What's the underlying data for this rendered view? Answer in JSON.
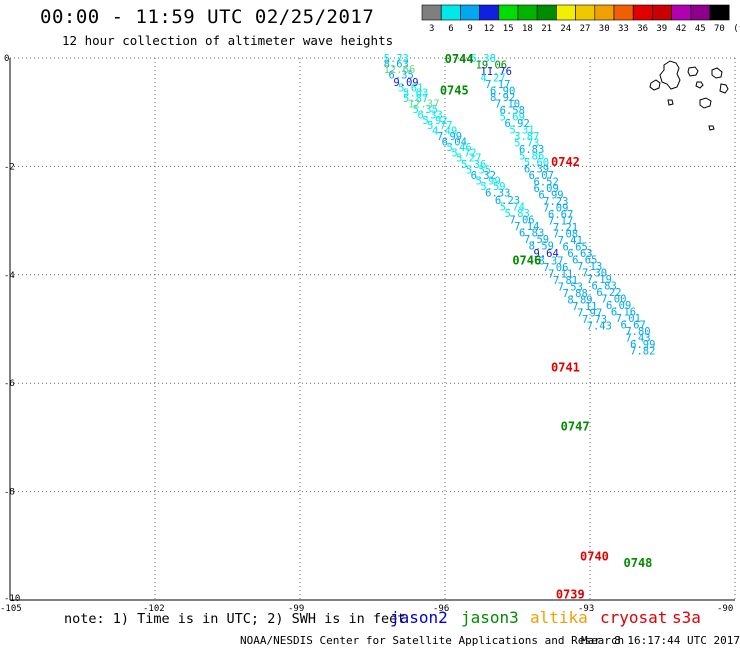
{
  "title": "00:00 - 11:59 UTC 02/25/2017",
  "subtitle": "12 hour collection of altimeter wave heights",
  "colorbar": {
    "labels": [
      "3",
      "6",
      "9",
      "12",
      "15",
      "18",
      "21",
      "24",
      "27",
      "30",
      "33",
      "36",
      "39",
      "42",
      "45",
      "70",
      "(ft)"
    ],
    "colors": [
      "#7f7f7f",
      "#00e8e8",
      "#00a8f0",
      "#1020e0",
      "#00dd00",
      "#00b400",
      "#008c00",
      "#f0f000",
      "#f0c800",
      "#f0a000",
      "#f06000",
      "#e00000",
      "#c80000",
      "#b000b0",
      "#8c008c",
      "#000000"
    ]
  },
  "note": "note: 1) Time is in UTC; 2) SWH is in feet",
  "satellites": [
    {
      "name": "jason2",
      "color": "#0000dd"
    },
    {
      "name": "jason3",
      "color": "#008c00"
    },
    {
      "name": "altika",
      "color": "#f0a000"
    },
    {
      "name": "cryosat",
      "color": "#e00000"
    },
    {
      "name": "s3a",
      "color": "#e00000"
    }
  ],
  "credit": "NOAA/NESDIS Center for Satellite Applications and Research",
  "timestamp": "Mar  8 16:17:44 UTC 2017",
  "chart_data": {
    "type": "scatter",
    "title": "00:00 - 11:59 UTC 02/25/2017",
    "subtitle": "12 hour collection of altimeter wave heights",
    "xlim": [
      -105,
      -90
    ],
    "ylim": [
      -10,
      0
    ],
    "x_ticks": [
      "-105",
      "-102",
      "-99",
      "-96",
      "-93",
      "-90"
    ],
    "y_ticks": [
      "0",
      "-2",
      "-4",
      "-6",
      "-8",
      "-10"
    ],
    "grid": true,
    "legend": "bottom",
    "time_labels": [
      {
        "text": "0744",
        "lon": -95.8,
        "lat": -0.02,
        "color": "#008c00"
      },
      {
        "text": "0745",
        "lon": -95.9,
        "lat": -0.6,
        "color": "#008c00"
      },
      {
        "text": "0742",
        "lon": -93.6,
        "lat": -1.92,
        "color": "#e00000"
      },
      {
        "text": "0746",
        "lon": -94.4,
        "lat": -3.74,
        "color": "#008c00"
      },
      {
        "text": "0741",
        "lon": -93.6,
        "lat": -5.71,
        "color": "#e00000"
      },
      {
        "text": "0747",
        "lon": -93.4,
        "lat": -6.8,
        "color": "#008c00"
      },
      {
        "text": "0740",
        "lon": -93.0,
        "lat": -9.2,
        "color": "#e00000"
      },
      {
        "text": "0748",
        "lon": -92.1,
        "lat": -9.32,
        "color": "#008c00"
      },
      {
        "text": "0739",
        "lon": -93.5,
        "lat": -9.9,
        "color": "#e00000"
      }
    ],
    "series": [
      {
        "values": [
          {
            "lon": -97.0,
            "lat": 0.0,
            "swh": "5.73",
            "color": "#00e8e8"
          },
          {
            "lon": -97.0,
            "lat": -0.1,
            "swh": "8.63",
            "color": "#00a8f0"
          },
          {
            "lon": -97.0,
            "lat": -0.2,
            "swh": "12.66",
            "color": "#6cdc6c"
          },
          {
            "lon": -96.9,
            "lat": -0.3,
            "swh": "6.35",
            "color": "#00a8f0"
          },
          {
            "lon": -96.8,
            "lat": -0.44,
            "swh": "9.09",
            "color": "#1020e0"
          },
          {
            "lon": -96.7,
            "lat": -0.54,
            "swh": "5.61",
            "color": "#00e8e8"
          },
          {
            "lon": -96.6,
            "lat": -0.64,
            "swh": "5.63",
            "color": "#00e8e8"
          },
          {
            "lon": -96.6,
            "lat": -0.74,
            "swh": "5.87",
            "color": "#00e8e8"
          },
          {
            "lon": -96.5,
            "lat": -0.84,
            "swh": "12.37",
            "color": "#6cdc6c"
          },
          {
            "lon": -96.4,
            "lat": -0.94,
            "swh": "5.35",
            "color": "#00e8e8"
          },
          {
            "lon": -96.3,
            "lat": -1.04,
            "swh": "6.33",
            "color": "#00e8e8"
          },
          {
            "lon": -96.2,
            "lat": -1.14,
            "swh": "5.92",
            "color": "#00e8e8"
          },
          {
            "lon": -96.1,
            "lat": -1.24,
            "swh": "5.77",
            "color": "#00e8e8"
          },
          {
            "lon": -96.0,
            "lat": -1.34,
            "swh": "4.49",
            "color": "#00e8e8"
          },
          {
            "lon": -95.9,
            "lat": -1.44,
            "swh": "7.99",
            "color": "#00a8f0"
          },
          {
            "lon": -95.8,
            "lat": -1.54,
            "swh": "6.04",
            "color": "#00a8f0"
          },
          {
            "lon": -95.7,
            "lat": -1.64,
            "swh": "5.46",
            "color": "#00e8e8"
          },
          {
            "lon": -95.6,
            "lat": -1.74,
            "swh": "5.72",
            "color": "#00e8e8"
          },
          {
            "lon": -95.5,
            "lat": -1.84,
            "swh": "5.27",
            "color": "#00e8e8"
          },
          {
            "lon": -95.4,
            "lat": -1.96,
            "swh": "5.36",
            "color": "#00e8e8"
          },
          {
            "lon": -95.3,
            "lat": -2.06,
            "swh": "5.55",
            "color": "#00e8e8"
          },
          {
            "lon": -95.2,
            "lat": -2.16,
            "swh": "6.32",
            "color": "#00a8f0"
          },
          {
            "lon": -95.1,
            "lat": -2.26,
            "swh": "5.99",
            "color": "#00e8e8"
          },
          {
            "lon": -95.0,
            "lat": -2.36,
            "swh": "5.59",
            "color": "#00e8e8"
          },
          {
            "lon": -94.9,
            "lat": -2.48,
            "swh": "6.33",
            "color": "#00a8f0"
          },
          {
            "lon": -94.7,
            "lat": -2.62,
            "swh": "6.23",
            "color": "#00a8f0"
          },
          {
            "lon": -94.6,
            "lat": -2.74,
            "swh": "5.74",
            "color": "#00e8e8"
          },
          {
            "lon": -94.5,
            "lat": -2.86,
            "swh": "5.83",
            "color": "#00e8e8"
          },
          {
            "lon": -94.4,
            "lat": -2.98,
            "swh": "7.06",
            "color": "#00a8f0"
          },
          {
            "lon": -94.3,
            "lat": -3.1,
            "swh": "7.14",
            "color": "#00a8f0"
          },
          {
            "lon": -94.2,
            "lat": -3.22,
            "swh": "6.83",
            "color": "#00a8f0"
          },
          {
            "lon": -94.1,
            "lat": -3.34,
            "swh": "7.59",
            "color": "#00a8f0"
          },
          {
            "lon": -94.0,
            "lat": -3.46,
            "swh": "8.59",
            "color": "#00a8f0"
          },
          {
            "lon": -93.9,
            "lat": -3.6,
            "swh": "9.64",
            "color": "#1020e0"
          },
          {
            "lon": -93.8,
            "lat": -3.74,
            "swh": "8.37",
            "color": "#00a8f0"
          },
          {
            "lon": -93.7,
            "lat": -3.86,
            "swh": "7.06",
            "color": "#00a8f0"
          },
          {
            "lon": -93.6,
            "lat": -3.98,
            "swh": "7.11",
            "color": "#00a8f0"
          },
          {
            "lon": -93.5,
            "lat": -4.1,
            "swh": "7.81",
            "color": "#00a8f0"
          },
          {
            "lon": -93.4,
            "lat": -4.22,
            "swh": "7.53",
            "color": "#00a8f0"
          },
          {
            "lon": -93.3,
            "lat": -4.34,
            "swh": "7.88",
            "color": "#00a8f0"
          },
          {
            "lon": -93.2,
            "lat": -4.46,
            "swh": "8.89",
            "color": "#00a8f0"
          },
          {
            "lon": -93.1,
            "lat": -4.58,
            "swh": "7.11",
            "color": "#00a8f0"
          },
          {
            "lon": -93.0,
            "lat": -4.7,
            "swh": "7.97",
            "color": "#00a8f0"
          },
          {
            "lon": -92.9,
            "lat": -4.82,
            "swh": "7.73",
            "color": "#00a8f0"
          },
          {
            "lon": -92.8,
            "lat": -4.94,
            "swh": "7.43",
            "color": "#00a8f0"
          }
        ]
      },
      {
        "values": [
          {
            "lon": -95.2,
            "lat": 0.0,
            "swh": "5.38",
            "color": "#00e8e8"
          },
          {
            "lon": -95.1,
            "lat": -0.12,
            "swh": "19.06",
            "color": "#008c00"
          },
          {
            "lon": -95.0,
            "lat": -0.24,
            "swh": "11.76",
            "color": "#1020e0"
          },
          {
            "lon": -95.0,
            "lat": -0.36,
            "swh": "4.27",
            "color": "#00e8e8"
          },
          {
            "lon": -94.9,
            "lat": -0.48,
            "swh": "7.17",
            "color": "#00a8f0"
          },
          {
            "lon": -94.8,
            "lat": -0.6,
            "swh": "6.90",
            "color": "#00a8f0"
          },
          {
            "lon": -94.8,
            "lat": -0.72,
            "swh": "8.92",
            "color": "#00a8f0"
          },
          {
            "lon": -94.7,
            "lat": -0.84,
            "swh": "7.10",
            "color": "#00a8f0"
          },
          {
            "lon": -94.6,
            "lat": -0.96,
            "swh": "6.58",
            "color": "#00a8f0"
          },
          {
            "lon": -94.6,
            "lat": -1.08,
            "swh": "5.69",
            "color": "#00e8e8"
          },
          {
            "lon": -94.5,
            "lat": -1.2,
            "swh": "6.92",
            "color": "#00a8f0"
          },
          {
            "lon": -94.4,
            "lat": -1.32,
            "swh": "5.31",
            "color": "#00e8e8"
          },
          {
            "lon": -94.3,
            "lat": -1.44,
            "swh": "3.87",
            "color": "#00e8e8"
          },
          {
            "lon": -94.3,
            "lat": -1.56,
            "swh": "5.73",
            "color": "#00e8e8"
          },
          {
            "lon": -94.2,
            "lat": -1.68,
            "swh": "6.83",
            "color": "#00a8f0"
          },
          {
            "lon": -94.2,
            "lat": -1.8,
            "swh": "5.86",
            "color": "#00e8e8"
          },
          {
            "lon": -94.1,
            "lat": -1.92,
            "swh": "5.60",
            "color": "#00e8e8"
          },
          {
            "lon": -94.1,
            "lat": -2.04,
            "swh": "6.39",
            "color": "#00a8f0"
          },
          {
            "lon": -94.0,
            "lat": -2.16,
            "swh": "6.07",
            "color": "#00a8f0"
          },
          {
            "lon": -93.9,
            "lat": -2.28,
            "swh": "6.52",
            "color": "#00a8f0"
          },
          {
            "lon": -93.9,
            "lat": -2.4,
            "swh": "6.09",
            "color": "#00a8f0"
          },
          {
            "lon": -93.8,
            "lat": -2.52,
            "swh": "6.99",
            "color": "#00a8f0"
          },
          {
            "lon": -93.7,
            "lat": -2.64,
            "swh": "7.23",
            "color": "#00a8f0"
          },
          {
            "lon": -93.7,
            "lat": -2.76,
            "swh": "7.09",
            "color": "#00a8f0"
          },
          {
            "lon": -93.6,
            "lat": -2.88,
            "swh": "6.67",
            "color": "#00a8f0"
          },
          {
            "lon": -93.6,
            "lat": -3.0,
            "swh": "7.17",
            "color": "#00a8f0"
          },
          {
            "lon": -93.5,
            "lat": -3.12,
            "swh": "7.21",
            "color": "#00a8f0"
          },
          {
            "lon": -93.5,
            "lat": -3.24,
            "swh": "7.08",
            "color": "#00a8f0"
          },
          {
            "lon": -93.4,
            "lat": -3.36,
            "swh": "7.41",
            "color": "#00a8f0"
          },
          {
            "lon": -93.3,
            "lat": -3.48,
            "swh": "6.65",
            "color": "#00a8f0"
          },
          {
            "lon": -93.2,
            "lat": -3.6,
            "swh": "6.63",
            "color": "#00a8f0"
          },
          {
            "lon": -93.1,
            "lat": -3.72,
            "swh": "6.65",
            "color": "#00a8f0"
          },
          {
            "lon": -93.0,
            "lat": -3.84,
            "swh": "7.13",
            "color": "#00a8f0"
          },
          {
            "lon": -92.9,
            "lat": -3.96,
            "swh": "7.30",
            "color": "#00a8f0"
          },
          {
            "lon": -92.8,
            "lat": -4.08,
            "swh": "7.19",
            "color": "#00a8f0"
          },
          {
            "lon": -92.7,
            "lat": -4.2,
            "swh": "6.83",
            "color": "#00a8f0"
          },
          {
            "lon": -92.6,
            "lat": -4.32,
            "swh": "6.22",
            "color": "#00a8f0"
          },
          {
            "lon": -92.5,
            "lat": -4.44,
            "swh": "7.00",
            "color": "#00a8f0"
          },
          {
            "lon": -92.4,
            "lat": -4.56,
            "swh": "6.09",
            "color": "#00a8f0"
          },
          {
            "lon": -92.3,
            "lat": -4.68,
            "swh": "6.16",
            "color": "#00a8f0"
          },
          {
            "lon": -92.2,
            "lat": -4.8,
            "swh": "7.01",
            "color": "#00a8f0"
          },
          {
            "lon": -92.1,
            "lat": -4.92,
            "swh": "6.67",
            "color": "#00a8f0"
          },
          {
            "lon": -92.0,
            "lat": -5.04,
            "swh": "7.80",
            "color": "#00a8f0"
          },
          {
            "lon": -92.0,
            "lat": -5.16,
            "swh": "7.43",
            "color": "#00a8f0"
          },
          {
            "lon": -91.9,
            "lat": -5.28,
            "swh": "6.99",
            "color": "#00a8f0"
          },
          {
            "lon": -91.9,
            "lat": -5.4,
            "swh": "7.82",
            "color": "#00a8f0"
          }
        ]
      }
    ]
  }
}
